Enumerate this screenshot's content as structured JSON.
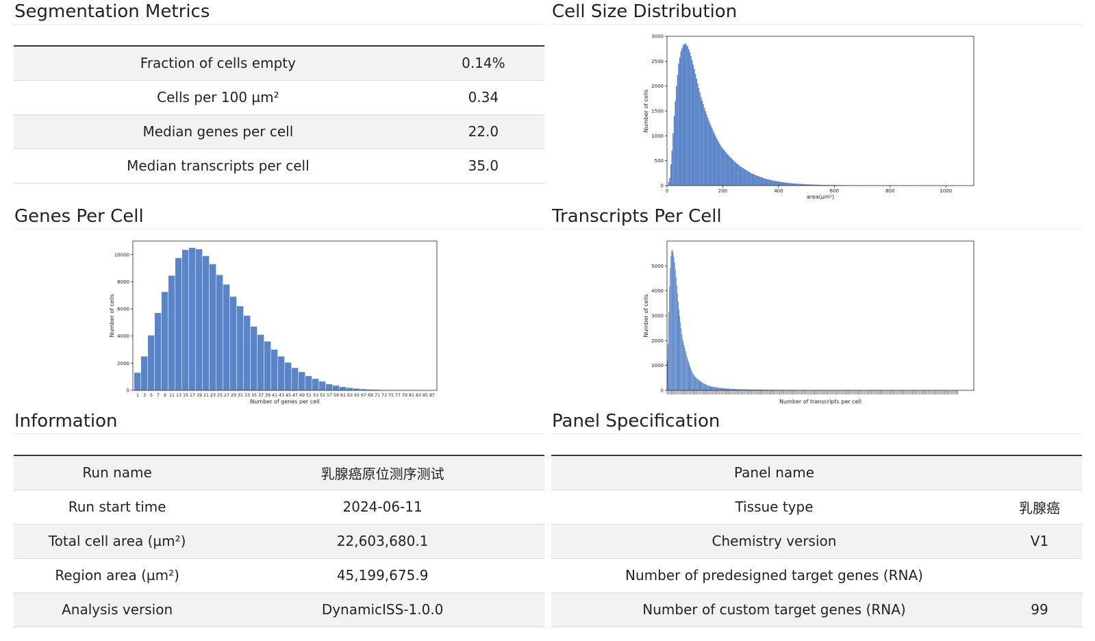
{
  "segmentation": {
    "title": "Segmentation Metrics",
    "rows": [
      {
        "label": "Fraction of cells empty",
        "value": "0.14%"
      },
      {
        "label": "Cells per 100 µm²",
        "value": "0.34"
      },
      {
        "label": "Median genes per cell",
        "value": "22.0"
      },
      {
        "label": "Median transcripts per cell",
        "value": "35.0"
      }
    ]
  },
  "cell_size": {
    "title": "Cell Size Distribution"
  },
  "genes_per_cell": {
    "title": "Genes Per Cell"
  },
  "transcripts_per_cell": {
    "title": "Transcripts Per Cell"
  },
  "information": {
    "title": "Information",
    "rows": [
      {
        "label": "Run name",
        "value": "乳腺癌原位测序测试"
      },
      {
        "label": "Run start time",
        "value": "2024-06-11"
      },
      {
        "label": "Total cell area (µm²)",
        "value": "22,603,680.1"
      },
      {
        "label": "Region area (µm²)",
        "value": "45,199,675.9"
      },
      {
        "label": "Analysis version",
        "value": "DynamicISS-1.0.0"
      }
    ]
  },
  "panel_spec": {
    "title": "Panel Specification",
    "rows": [
      {
        "label": "Panel name",
        "value": ""
      },
      {
        "label": "Tissue type",
        "value": "乳腺癌"
      },
      {
        "label": "Chemistry version",
        "value": "V1"
      },
      {
        "label": "Number of predesigned target genes (RNA)",
        "value": ""
      },
      {
        "label": "Number of custom target genes (RNA)",
        "value": "99"
      }
    ]
  },
  "chart_data": [
    {
      "id": "cell_size",
      "type": "bar",
      "bar_color": "#5a84c8",
      "xlabel": "area(μm²)",
      "ylabel": "Number of cells",
      "xlim": [
        0,
        1100
      ],
      "ylim": [
        0,
        3000
      ],
      "xticks": [
        0,
        200,
        400,
        600,
        800,
        1000
      ],
      "yticks": [
        0,
        500,
        1000,
        1500,
        2000,
        2500,
        3000
      ],
      "bin_width": 4,
      "x": [
        8,
        16,
        24,
        32,
        40,
        48,
        56,
        64,
        72,
        80,
        88,
        96,
        104,
        112,
        120,
        130,
        140,
        150,
        160,
        170,
        180,
        190,
        200,
        215,
        230,
        245,
        260,
        280,
        300,
        325,
        350,
        375,
        400,
        430,
        460,
        500,
        550,
        600,
        650,
        700,
        800,
        900,
        1000
      ],
      "values": [
        150,
        700,
        1400,
        2000,
        2450,
        2700,
        2820,
        2860,
        2800,
        2680,
        2520,
        2340,
        2150,
        1960,
        1780,
        1600,
        1430,
        1280,
        1150,
        1020,
        910,
        810,
        730,
        630,
        540,
        460,
        390,
        320,
        250,
        190,
        140,
        105,
        80,
        55,
        40,
        25,
        15,
        10,
        6,
        4,
        2,
        1,
        1
      ]
    },
    {
      "id": "genes_per_cell",
      "type": "bar",
      "bar_color": "#5a84c8",
      "xlabel": "Number of genes per cell",
      "ylabel": "Number of cells",
      "ylim": [
        0,
        11000
      ],
      "yticks": [
        0,
        2000,
        4000,
        6000,
        8000,
        10000
      ],
      "categories": [
        "1",
        "3",
        "5",
        "7",
        "9",
        "11",
        "13",
        "15",
        "17",
        "19",
        "21",
        "23",
        "25",
        "27",
        "29",
        "31",
        "33",
        "35",
        "37",
        "39",
        "41",
        "43",
        "45",
        "47",
        "49",
        "51",
        "53",
        "55",
        "57",
        "59",
        "61",
        "63",
        "65",
        "67",
        "69",
        "71",
        "73",
        "75",
        "77",
        "79",
        "81",
        "83",
        "85",
        "87"
      ],
      "values": [
        1300,
        2500,
        4050,
        5700,
        7250,
        8450,
        9750,
        10350,
        10500,
        10400,
        9900,
        9300,
        8500,
        7800,
        6900,
        6200,
        5500,
        4700,
        4100,
        3600,
        3000,
        2500,
        2050,
        1650,
        1350,
        1050,
        850,
        650,
        450,
        350,
        250,
        180,
        130,
        90,
        60,
        45,
        30,
        20,
        15,
        10,
        8,
        5,
        3,
        2
      ]
    },
    {
      "id": "transcripts_per_cell",
      "type": "bar",
      "bar_color": "#5a84c8",
      "xlabel": "Number of transcripts per cell",
      "ylabel": "Number of cells",
      "ylim": [
        0,
        6000
      ],
      "yticks": [
        0,
        1000,
        2000,
        3000,
        4000,
        5000
      ],
      "x": [
        1,
        3,
        5,
        7,
        9,
        11,
        13,
        15,
        17,
        19,
        21,
        24,
        27,
        30,
        33,
        36,
        40,
        45,
        50,
        55,
        60,
        70,
        80,
        90,
        100,
        120,
        140,
        160,
        180,
        200,
        240,
        280,
        320,
        400
      ],
      "values": [
        1200,
        3800,
        5300,
        5700,
        5500,
        5000,
        4400,
        3700,
        3100,
        2600,
        2150,
        1750,
        1400,
        1100,
        850,
        650,
        500,
        380,
        280,
        210,
        160,
        110,
        80,
        60,
        45,
        32,
        24,
        18,
        14,
        10,
        7,
        5,
        3,
        2
      ],
      "xlim": [
        0,
        420
      ]
    }
  ]
}
